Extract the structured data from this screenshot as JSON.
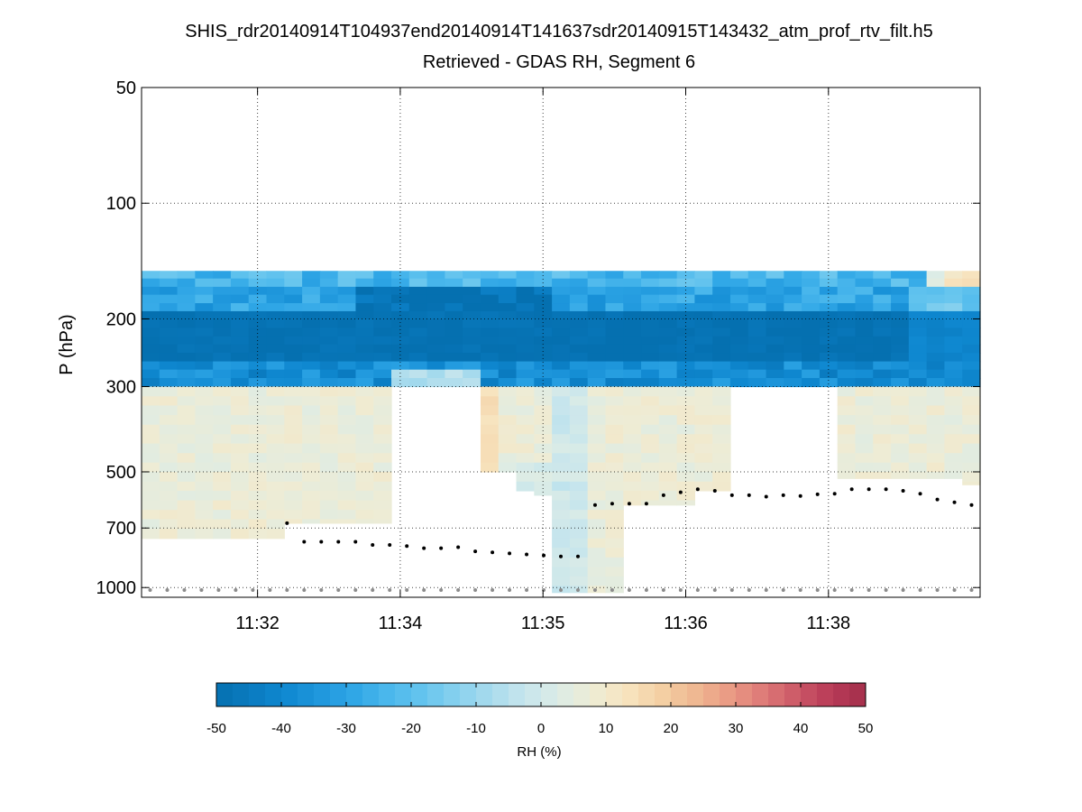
{
  "chart_data": {
    "type": "heatmap",
    "title": "SHIS_rdr20140914T104937end20140914T141637sdr20140915T143432_atm_prof_rtv_filt.h5",
    "subtitle": "Retrieved - GDAS RH, Segment 6",
    "ylabel": "P (hPa)",
    "y_scale": "log",
    "y_reversed": true,
    "ylim": [
      50,
      1060
    ],
    "y_ticks": [
      {
        "value": 50,
        "label": "50"
      },
      {
        "value": 100,
        "label": "100"
      },
      {
        "value": 200,
        "label": "200"
      },
      {
        "value": 300,
        "label": "300"
      },
      {
        "value": 500,
        "label": "500"
      },
      {
        "value": 700,
        "label": "700"
      },
      {
        "value": 1000,
        "label": "1000"
      }
    ],
    "x_range": [
      0,
      47
    ],
    "x_ticks": [
      {
        "value": 6.5,
        "label": "11:32"
      },
      {
        "value": 14.5,
        "label": "11:34"
      },
      {
        "value": 22.5,
        "label": "11:35"
      },
      {
        "value": 30.5,
        "label": "11:36"
      },
      {
        "value": 38.5,
        "label": "11:38"
      }
    ],
    "profile_columns": 47,
    "pressure_levels": [
      150,
      157,
      165,
      173,
      182,
      191,
      200,
      211,
      222,
      233,
      245,
      258,
      271,
      285,
      300,
      318,
      336,
      356,
      377,
      399,
      422,
      447,
      473,
      500,
      530,
      560,
      593,
      628,
      664,
      703,
      745,
      788,
      835,
      884,
      935,
      990,
      1030
    ],
    "column_bottoms_hpa": [
      745,
      745,
      745,
      745,
      745,
      745,
      745,
      745,
      680,
      680,
      680,
      680,
      680,
      680,
      300,
      300,
      300,
      300,
      300,
      500,
      500,
      560,
      575,
      1030,
      1030,
      1030,
      1030,
      610,
      610,
      610,
      610,
      560,
      560,
      300,
      300,
      300,
      300,
      300,
      300,
      520,
      520,
      520,
      520,
      520,
      520,
      520,
      540
    ],
    "surface_pressure_hpa": [
      1015,
      1015,
      1015,
      1015,
      1015,
      1015,
      1015,
      1015,
      680,
      760,
      760,
      760,
      760,
      775,
      775,
      780,
      790,
      790,
      785,
      805,
      810,
      815,
      820,
      825,
      830,
      830,
      610,
      605,
      605,
      605,
      575,
      565,
      555,
      560,
      575,
      575,
      580,
      575,
      578,
      572,
      570,
      555,
      555,
      555,
      560,
      570,
      590,
      600,
      610
    ],
    "bottom_marker_hpa": 1015,
    "colorbar": {
      "label": "RH (%)",
      "min": -50,
      "max": 50,
      "ticks": [
        "-50",
        "-40",
        "-30",
        "-20",
        "-10",
        "0",
        "10",
        "20",
        "30",
        "40",
        "50"
      ],
      "n_bins": 40,
      "colors": [
        "#0570b0",
        "#0a7bc0",
        "#0f88d0",
        "#1f97dc",
        "#2fa6e6",
        "#4ab7ec",
        "#64c4ee",
        "#86d0ee",
        "#a8dbed",
        "#c6e5ed",
        "#dcece6",
        "#eeecd5",
        "#f7e4bf",
        "#f4d0a4",
        "#efb892",
        "#ea9b84",
        "#de7a78",
        "#cc5867",
        "#b83a57",
        "#a3304b"
      ]
    }
  }
}
